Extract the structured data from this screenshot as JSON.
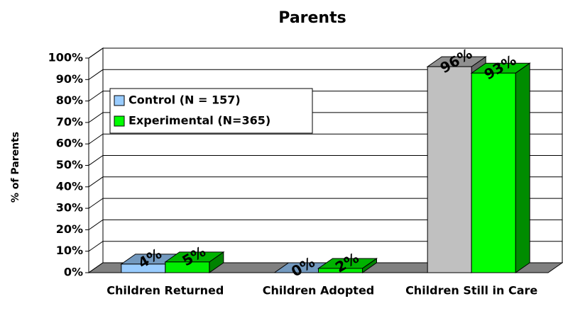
{
  "chart_data": {
    "type": "bar3d",
    "title": "Parents",
    "ylabel": "% of Parents",
    "categories": [
      "Children Returned",
      "Children Adopted",
      "Children Still in Care"
    ],
    "series": [
      {
        "name": "Control (N = 157)",
        "color": "#99ccff",
        "colors": [
          "#99ccff",
          "#99ccff",
          "#c0c0c0"
        ],
        "values": [
          4,
          0,
          96
        ],
        "value_labels": [
          "4%",
          "0%",
          "96%"
        ]
      },
      {
        "name": "Experimental (N=365)",
        "color": "#00ff00",
        "colors": [
          "#00ee00",
          "#00ee00",
          "#00ff00"
        ],
        "values": [
          5,
          2,
          93
        ],
        "value_labels": [
          "5%",
          "2%",
          "93%"
        ]
      }
    ],
    "ylim": [
      0,
      100
    ],
    "yticks": [
      {
        "value": 0,
        "label": "0%"
      },
      {
        "value": 10,
        "label": "10%"
      },
      {
        "value": 20,
        "label": "20%"
      },
      {
        "value": 30,
        "label": "30%"
      },
      {
        "value": 40,
        "label": "40%"
      },
      {
        "value": 50,
        "label": "50%"
      },
      {
        "value": 60,
        "label": "60%"
      },
      {
        "value": 70,
        "label": "70%"
      },
      {
        "value": 80,
        "label": "80%"
      },
      {
        "value": 90,
        "label": "90%"
      },
      {
        "value": 100,
        "label": "100%"
      }
    ],
    "grid": true,
    "legend": "upper left"
  }
}
